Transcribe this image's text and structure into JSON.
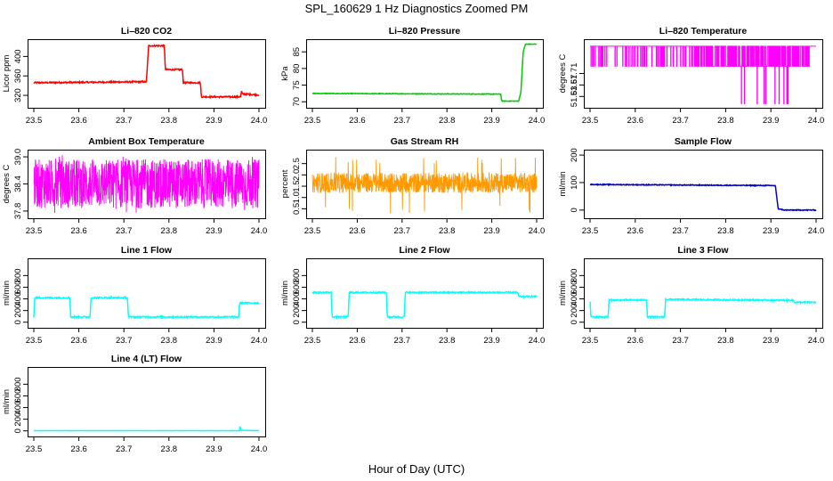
{
  "figure": {
    "title": "SPL_160629  1 Hz Diagnostics Zoomed PM",
    "xlabel": "Hour of Day (UTC)"
  },
  "chart_data": [
    {
      "type": "line",
      "title": "Li–820 CO2",
      "ylabel": "Licor ppm",
      "color": "#ff0000",
      "xlim": [
        23.5,
        24.0
      ],
      "ylim": [
        300,
        430
      ],
      "xticks": [
        23.5,
        23.6,
        23.7,
        23.8,
        23.9,
        24.0
      ],
      "xtick_labels": [
        "23.5",
        "23.6",
        "23.7",
        "23.8",
        "23.9",
        "24.0"
      ],
      "yticks": [
        320,
        360,
        400
      ],
      "ytick_labels": [
        "320",
        "360",
        "400"
      ],
      "noise": 1.5,
      "points": [
        [
          23.5,
          346
        ],
        [
          23.75,
          348
        ],
        [
          23.755,
          422
        ],
        [
          23.79,
          422
        ],
        [
          23.792,
          373
        ],
        [
          23.83,
          373
        ],
        [
          23.832,
          346
        ],
        [
          23.87,
          346
        ],
        [
          23.872,
          317
        ],
        [
          23.955,
          317
        ],
        [
          23.96,
          318
        ],
        [
          23.961,
          330
        ],
        [
          23.963,
          323
        ],
        [
          24.0,
          321
        ]
      ]
    },
    {
      "type": "line",
      "title": "Li–820 Pressure",
      "ylabel": "kPa",
      "color": "#00cc00",
      "xlim": [
        23.5,
        24.0
      ],
      "ylim": [
        69,
        88
      ],
      "xticks": [
        23.5,
        23.6,
        23.7,
        23.8,
        23.9,
        24.0
      ],
      "xtick_labels": [
        "23.5",
        "23.6",
        "23.7",
        "23.8",
        "23.9",
        "24.0"
      ],
      "yticks": [
        70,
        75,
        80,
        85
      ],
      "ytick_labels": [
        "70",
        "75",
        "80",
        "85"
      ],
      "noise": 0.1,
      "points": [
        [
          23.5,
          72.5
        ],
        [
          23.92,
          72.3
        ],
        [
          23.922,
          70.2
        ],
        [
          23.96,
          70.2
        ],
        [
          23.965,
          73
        ],
        [
          23.97,
          85
        ],
        [
          23.975,
          87.3
        ],
        [
          24.0,
          87.3
        ]
      ]
    },
    {
      "type": "spiky",
      "title": "Li–820 Temperature",
      "ylabel": "degrees C",
      "color": "#ff00ff",
      "xlim": [
        23.5,
        24.0
      ],
      "ylim": [
        51.6,
        51.82
      ],
      "xticks": [
        23.5,
        23.6,
        23.7,
        23.8,
        23.9,
        24.0
      ],
      "xtick_labels": [
        "23.5",
        "23.6",
        "23.7",
        "23.8",
        "23.9",
        "24.0"
      ],
      "yticks": [
        51.63,
        51.67,
        51.71
      ],
      "ytick_labels": [
        "51.63",
        "51.67",
        "51.71"
      ],
      "base": 51.805,
      "low": 51.735,
      "deep": 51.605
    },
    {
      "type": "noise",
      "title": "Ambient Box Temperature",
      "ylabel": "degrees C",
      "color": "#ff00ff",
      "xlim": [
        23.5,
        24.0
      ],
      "ylim": [
        37.7,
        39.1
      ],
      "xticks": [
        23.5,
        23.6,
        23.7,
        23.8,
        23.9,
        24.0
      ],
      "xtick_labels": [
        "23.5",
        "23.6",
        "23.7",
        "23.8",
        "23.9",
        "24.0"
      ],
      "yticks": [
        37.8,
        38.4,
        39.0
      ],
      "ytick_labels": [
        "37.8",
        "38.4",
        "39.0"
      ],
      "low": 37.86,
      "high": 38.95,
      "min": 37.75,
      "max": 39.05
    },
    {
      "type": "noise",
      "title": "Gas Stream RH",
      "ylabel": "percent",
      "color": "#ff9900",
      "xlim": [
        23.5,
        24.0
      ],
      "ylim": [
        0.2,
        3.0
      ],
      "xticks": [
        23.5,
        23.6,
        23.7,
        23.8,
        23.9,
        24.0
      ],
      "xtick_labels": [
        "23.5",
        "23.6",
        "23.7",
        "23.8",
        "23.9",
        "24.0"
      ],
      "yticks": [
        0.5,
        1.0,
        1.5,
        2.0,
        2.5
      ],
      "ytick_labels": [
        "0.5",
        "1.0",
        "1.5",
        "2.0",
        "2.5"
      ],
      "low": 1.2,
      "high": 2.1,
      "min": 0.3,
      "max": 2.85
    },
    {
      "type": "line",
      "title": "Sample Flow",
      "ylabel": "ml/min",
      "color": "#0000cc",
      "xlim": [
        23.5,
        24.0
      ],
      "ylim": [
        -20,
        210
      ],
      "xticks": [
        23.5,
        23.6,
        23.7,
        23.8,
        23.9,
        24.0
      ],
      "xtick_labels": [
        "23.5",
        "23.6",
        "23.7",
        "23.8",
        "23.9",
        "24.0"
      ],
      "yticks": [
        0,
        100,
        200
      ],
      "ytick_labels": [
        "0",
        "100",
        "200"
      ],
      "noise": 1.5,
      "points": [
        [
          23.5,
          93
        ],
        [
          23.7,
          91
        ],
        [
          23.91,
          89
        ],
        [
          23.912,
          60
        ],
        [
          23.916,
          5
        ],
        [
          23.93,
          0
        ],
        [
          24.0,
          0
        ]
      ]
    },
    {
      "type": "line",
      "title": "Line 1 Flow",
      "ylabel": "ml/min",
      "color": "#00ffff",
      "xlim": [
        23.5,
        24.0
      ],
      "ylim": [
        -50,
        1050
      ],
      "xticks": [
        23.5,
        23.6,
        23.7,
        23.8,
        23.9,
        24.0
      ],
      "xtick_labels": [
        "23.5",
        "23.6",
        "23.7",
        "23.8",
        "23.9",
        "24.0"
      ],
      "yticks": [
        0,
        200,
        400,
        600,
        800
      ],
      "ytick_labels": [
        "0",
        "200",
        "400",
        "600",
        "800"
      ],
      "noise": 12,
      "points": [
        [
          23.5,
          90
        ],
        [
          23.502,
          420
        ],
        [
          23.58,
          420
        ],
        [
          23.582,
          90
        ],
        [
          23.625,
          90
        ],
        [
          23.627,
          420
        ],
        [
          23.708,
          420
        ],
        [
          23.71,
          90
        ],
        [
          23.955,
          90
        ],
        [
          23.957,
          330
        ],
        [
          24.0,
          330
        ]
      ]
    },
    {
      "type": "line",
      "title": "Line 2 Flow",
      "ylabel": "ml/min",
      "color": "#00ffff",
      "xlim": [
        23.5,
        24.0
      ],
      "ylim": [
        -50,
        1050
      ],
      "xticks": [
        23.5,
        23.6,
        23.7,
        23.8,
        23.9,
        24.0
      ],
      "xtick_labels": [
        "23.5",
        "23.6",
        "23.7",
        "23.8",
        "23.9",
        "24.0"
      ],
      "yticks": [
        0,
        200,
        400,
        600,
        800
      ],
      "ytick_labels": [
        "0",
        "200",
        "400",
        "600",
        "800"
      ],
      "noise": 12,
      "points": [
        [
          23.5,
          510
        ],
        [
          23.542,
          510
        ],
        [
          23.544,
          90
        ],
        [
          23.58,
          90
        ],
        [
          23.582,
          510
        ],
        [
          23.665,
          510
        ],
        [
          23.667,
          90
        ],
        [
          23.705,
          90
        ],
        [
          23.707,
          510
        ],
        [
          23.958,
          510
        ],
        [
          23.96,
          440
        ],
        [
          24.0,
          440
        ]
      ]
    },
    {
      "type": "line",
      "title": "Line 3 Flow",
      "ylabel": "ml/min",
      "color": "#00ffff",
      "xlim": [
        23.5,
        24.0
      ],
      "ylim": [
        -50,
        1050
      ],
      "xticks": [
        23.5,
        23.6,
        23.7,
        23.8,
        23.9,
        24.0
      ],
      "xtick_labels": [
        "23.5",
        "23.6",
        "23.7",
        "23.8",
        "23.9",
        "24.0"
      ],
      "yticks": [
        0,
        200,
        400,
        600,
        800
      ],
      "ytick_labels": [
        "0",
        "200",
        "400",
        "600",
        "800"
      ],
      "noise": 12,
      "points": [
        [
          23.5,
          360
        ],
        [
          23.502,
          90
        ],
        [
          23.54,
          90
        ],
        [
          23.542,
          380
        ],
        [
          23.625,
          380
        ],
        [
          23.627,
          90
        ],
        [
          23.665,
          90
        ],
        [
          23.667,
          390
        ],
        [
          23.95,
          375
        ],
        [
          23.952,
          340
        ],
        [
          24.0,
          340
        ]
      ]
    },
    {
      "type": "line",
      "title": "Line 4 (LT) Flow",
      "ylabel": "ml/min",
      "color": "#00ffff",
      "xlim": [
        23.5,
        24.0
      ],
      "ylim": [
        -50,
        1050
      ],
      "xticks": [
        23.5,
        23.6,
        23.7,
        23.8,
        23.9,
        24.0
      ],
      "xtick_labels": [
        "23.5",
        "23.6",
        "23.7",
        "23.8",
        "23.9",
        "24.0"
      ],
      "yticks": [
        0,
        200,
        400,
        600,
        800
      ],
      "ytick_labels": [
        "0",
        "200",
        "400",
        "600",
        "800"
      ],
      "noise": 1,
      "points": [
        [
          23.5,
          3
        ],
        [
          23.957,
          3
        ],
        [
          23.958,
          120
        ],
        [
          23.959,
          10
        ],
        [
          24.0,
          3
        ]
      ]
    }
  ]
}
